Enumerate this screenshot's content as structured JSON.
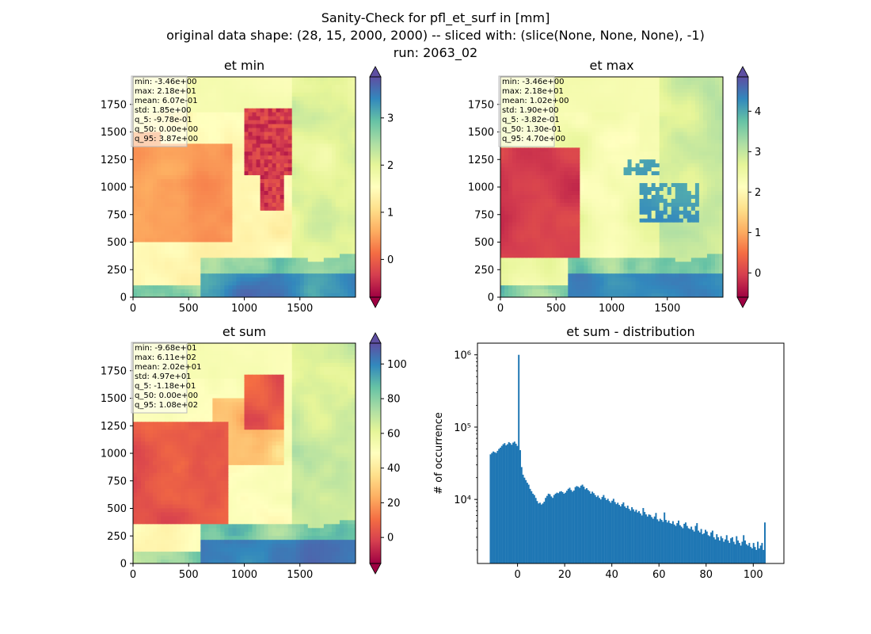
{
  "figure": {
    "suptitle_lines": [
      "Sanity-Check for pfl_et_surf in [mm]",
      "original data shape: (28, 15, 2000, 2000) -- sliced with: (slice(None, None, None), -1)",
      "run: 2063_02"
    ]
  },
  "palette": {
    "spectral": [
      "#9e0142",
      "#d53e4f",
      "#f46d43",
      "#fdae61",
      "#fee08b",
      "#ffffbf",
      "#e6f598",
      "#abdda4",
      "#66c2a5",
      "#3288bd",
      "#5e4fa2"
    ],
    "hist_bar": "#1f77b4"
  },
  "chart_data": [
    {
      "type": "heatmap",
      "title": "et min",
      "x_ticks": [
        "0",
        "500",
        "1000",
        "1500"
      ],
      "y_ticks": [
        "0",
        "250",
        "500",
        "750",
        "1000",
        "1250",
        "1500",
        "1750"
      ],
      "xlim": [
        0,
        2000
      ],
      "ylim": [
        0,
        2000
      ],
      "colorbar": {
        "vmin": -0.8,
        "vmax": 3.87,
        "ticks": [
          0,
          1,
          2,
          3
        ],
        "extend": "both"
      },
      "stats": [
        "min: -3.46e+00",
        "max: 2.18e+01",
        "mean: 6.07e-01",
        "std: 1.85e+00",
        "q_5: -9.78e-01",
        "q_50: 0.00e+00",
        "q_95: 3.87e+00"
      ]
    },
    {
      "type": "heatmap",
      "title": "et max",
      "x_ticks": [
        "0",
        "500",
        "1000",
        "1500"
      ],
      "y_ticks": [
        "0",
        "250",
        "500",
        "750",
        "1000",
        "1250",
        "1500",
        "1750"
      ],
      "xlim": [
        0,
        2000
      ],
      "ylim": [
        0,
        2000
      ],
      "colorbar": {
        "vmin": -0.6,
        "vmax": 4.85,
        "ticks": [
          0,
          1,
          2,
          3,
          4
        ],
        "extend": "both"
      },
      "stats": [
        "min: -3.46e+00",
        "max: 2.18e+01",
        "mean: 1.02e+00",
        "std: 1.90e+00",
        "q_5: -3.82e-01",
        "q_50: 1.30e-01",
        "q_95: 4.70e+00"
      ]
    },
    {
      "type": "heatmap",
      "title": "et sum",
      "x_ticks": [
        "0",
        "500",
        "1000",
        "1500"
      ],
      "y_ticks": [
        "0",
        "250",
        "500",
        "750",
        "1000",
        "1250",
        "1500",
        "1750"
      ],
      "xlim": [
        0,
        2000
      ],
      "ylim": [
        0,
        2000
      ],
      "colorbar": {
        "vmin": -15,
        "vmax": 112,
        "ticks": [
          0,
          20,
          40,
          60,
          80,
          100
        ],
        "extend": "both"
      },
      "stats": [
        "min: -9.68e+01",
        "max: 6.11e+02",
        "mean: 2.02e+01",
        "std: 4.97e+01",
        "q_5: -1.18e+01",
        "q_50: 0.00e+00",
        "q_95: 1.08e+02"
      ]
    },
    {
      "type": "bar",
      "subtype": "histogram",
      "title": "et sum - distribution",
      "xlabel": "",
      "ylabel": "# of occurrence",
      "xlim": [
        -17,
        113
      ],
      "x_ticks": [
        0,
        20,
        40,
        60,
        80,
        100
      ],
      "y_scale": "log",
      "ylim": [
        1300,
        1450000
      ],
      "y_ticks": [
        {
          "value": 10000,
          "label": "10⁴"
        },
        {
          "value": 100000,
          "label": "10⁵"
        },
        {
          "value": 1000000,
          "label": "10⁶"
        }
      ],
      "bin_start": -11.8,
      "bin_width": 0.6,
      "values": [
        42000,
        44000,
        46000,
        45000,
        44000,
        47000,
        50000,
        52000,
        55000,
        58000,
        60000,
        56000,
        58000,
        62000,
        60000,
        57000,
        61000,
        63000,
        59000,
        55000,
        1000000,
        48000,
        28000,
        22000,
        20000,
        18500,
        17000,
        16000,
        14000,
        13000,
        12000,
        11500,
        10500,
        9500,
        8800,
        9000,
        8500,
        8800,
        9300,
        10500,
        11200,
        12000,
        11800,
        11000,
        10500,
        11500,
        12000,
        12400,
        12200,
        12800,
        13000,
        12600,
        12000,
        12400,
        13200,
        14000,
        14500,
        13500,
        12800,
        13300,
        14800,
        15300,
        15000,
        14500,
        15500,
        16000,
        15000,
        13800,
        14300,
        13500,
        13000,
        12000,
        12800,
        12200,
        11500,
        10800,
        11300,
        10500,
        10000,
        10800,
        11500,
        10500,
        9800,
        10200,
        9500,
        9000,
        9600,
        10200,
        9200,
        8600,
        9000,
        8400,
        8000,
        8600,
        9100,
        8000,
        7600,
        8200,
        7400,
        7000,
        7800,
        7300,
        6800,
        7200,
        6600,
        6900,
        6400,
        6000,
        7600,
        6700,
        6200,
        5800,
        6200,
        6100,
        5700,
        5400,
        5800,
        6500,
        5300,
        5000,
        5400,
        5200,
        4900,
        6600,
        5200,
        4800,
        5100,
        4700,
        4600,
        5000,
        4500,
        4300,
        4700,
        5100,
        4400,
        4200,
        4000,
        4600,
        4800,
        4300,
        4000,
        3900,
        4200,
        3800,
        3600,
        4300,
        4700,
        3700,
        3500,
        3900,
        3300,
        3400,
        3800,
        3600,
        3200,
        3100,
        3500,
        3700,
        3000,
        2800,
        3300,
        3000,
        2700,
        3100,
        2900,
        2600,
        2800,
        3200,
        2700,
        2500,
        2900,
        3000,
        2600,
        2400,
        3100,
        2700,
        2500,
        2300,
        2600,
        3200,
        2700,
        2400,
        2300,
        2500,
        2200,
        2100,
        2500,
        2200,
        2000,
        2600,
        2100,
        2300,
        2500,
        2000,
        4800
      ]
    }
  ]
}
